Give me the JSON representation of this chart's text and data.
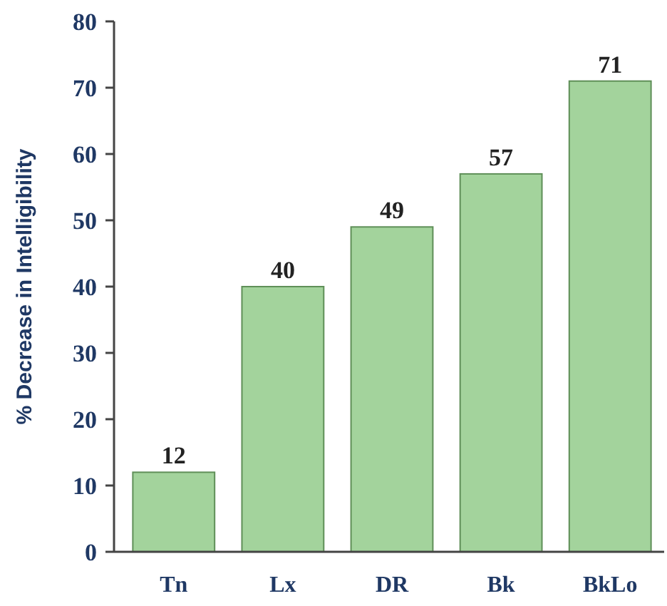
{
  "chart_data": {
    "type": "bar",
    "ylabel": "% Decrease in Intelligibility",
    "categories": [
      "Tn",
      "Lx",
      "DR",
      "Bk",
      "BkLo"
    ],
    "values": [
      12,
      40,
      49,
      57,
      71
    ],
    "color": "#a3d39c",
    "ylim": [
      0,
      80
    ],
    "yticks": [
      0,
      10,
      20,
      30,
      40,
      50,
      60,
      70,
      80
    ],
    "data_labels": true,
    "grid": false
  }
}
